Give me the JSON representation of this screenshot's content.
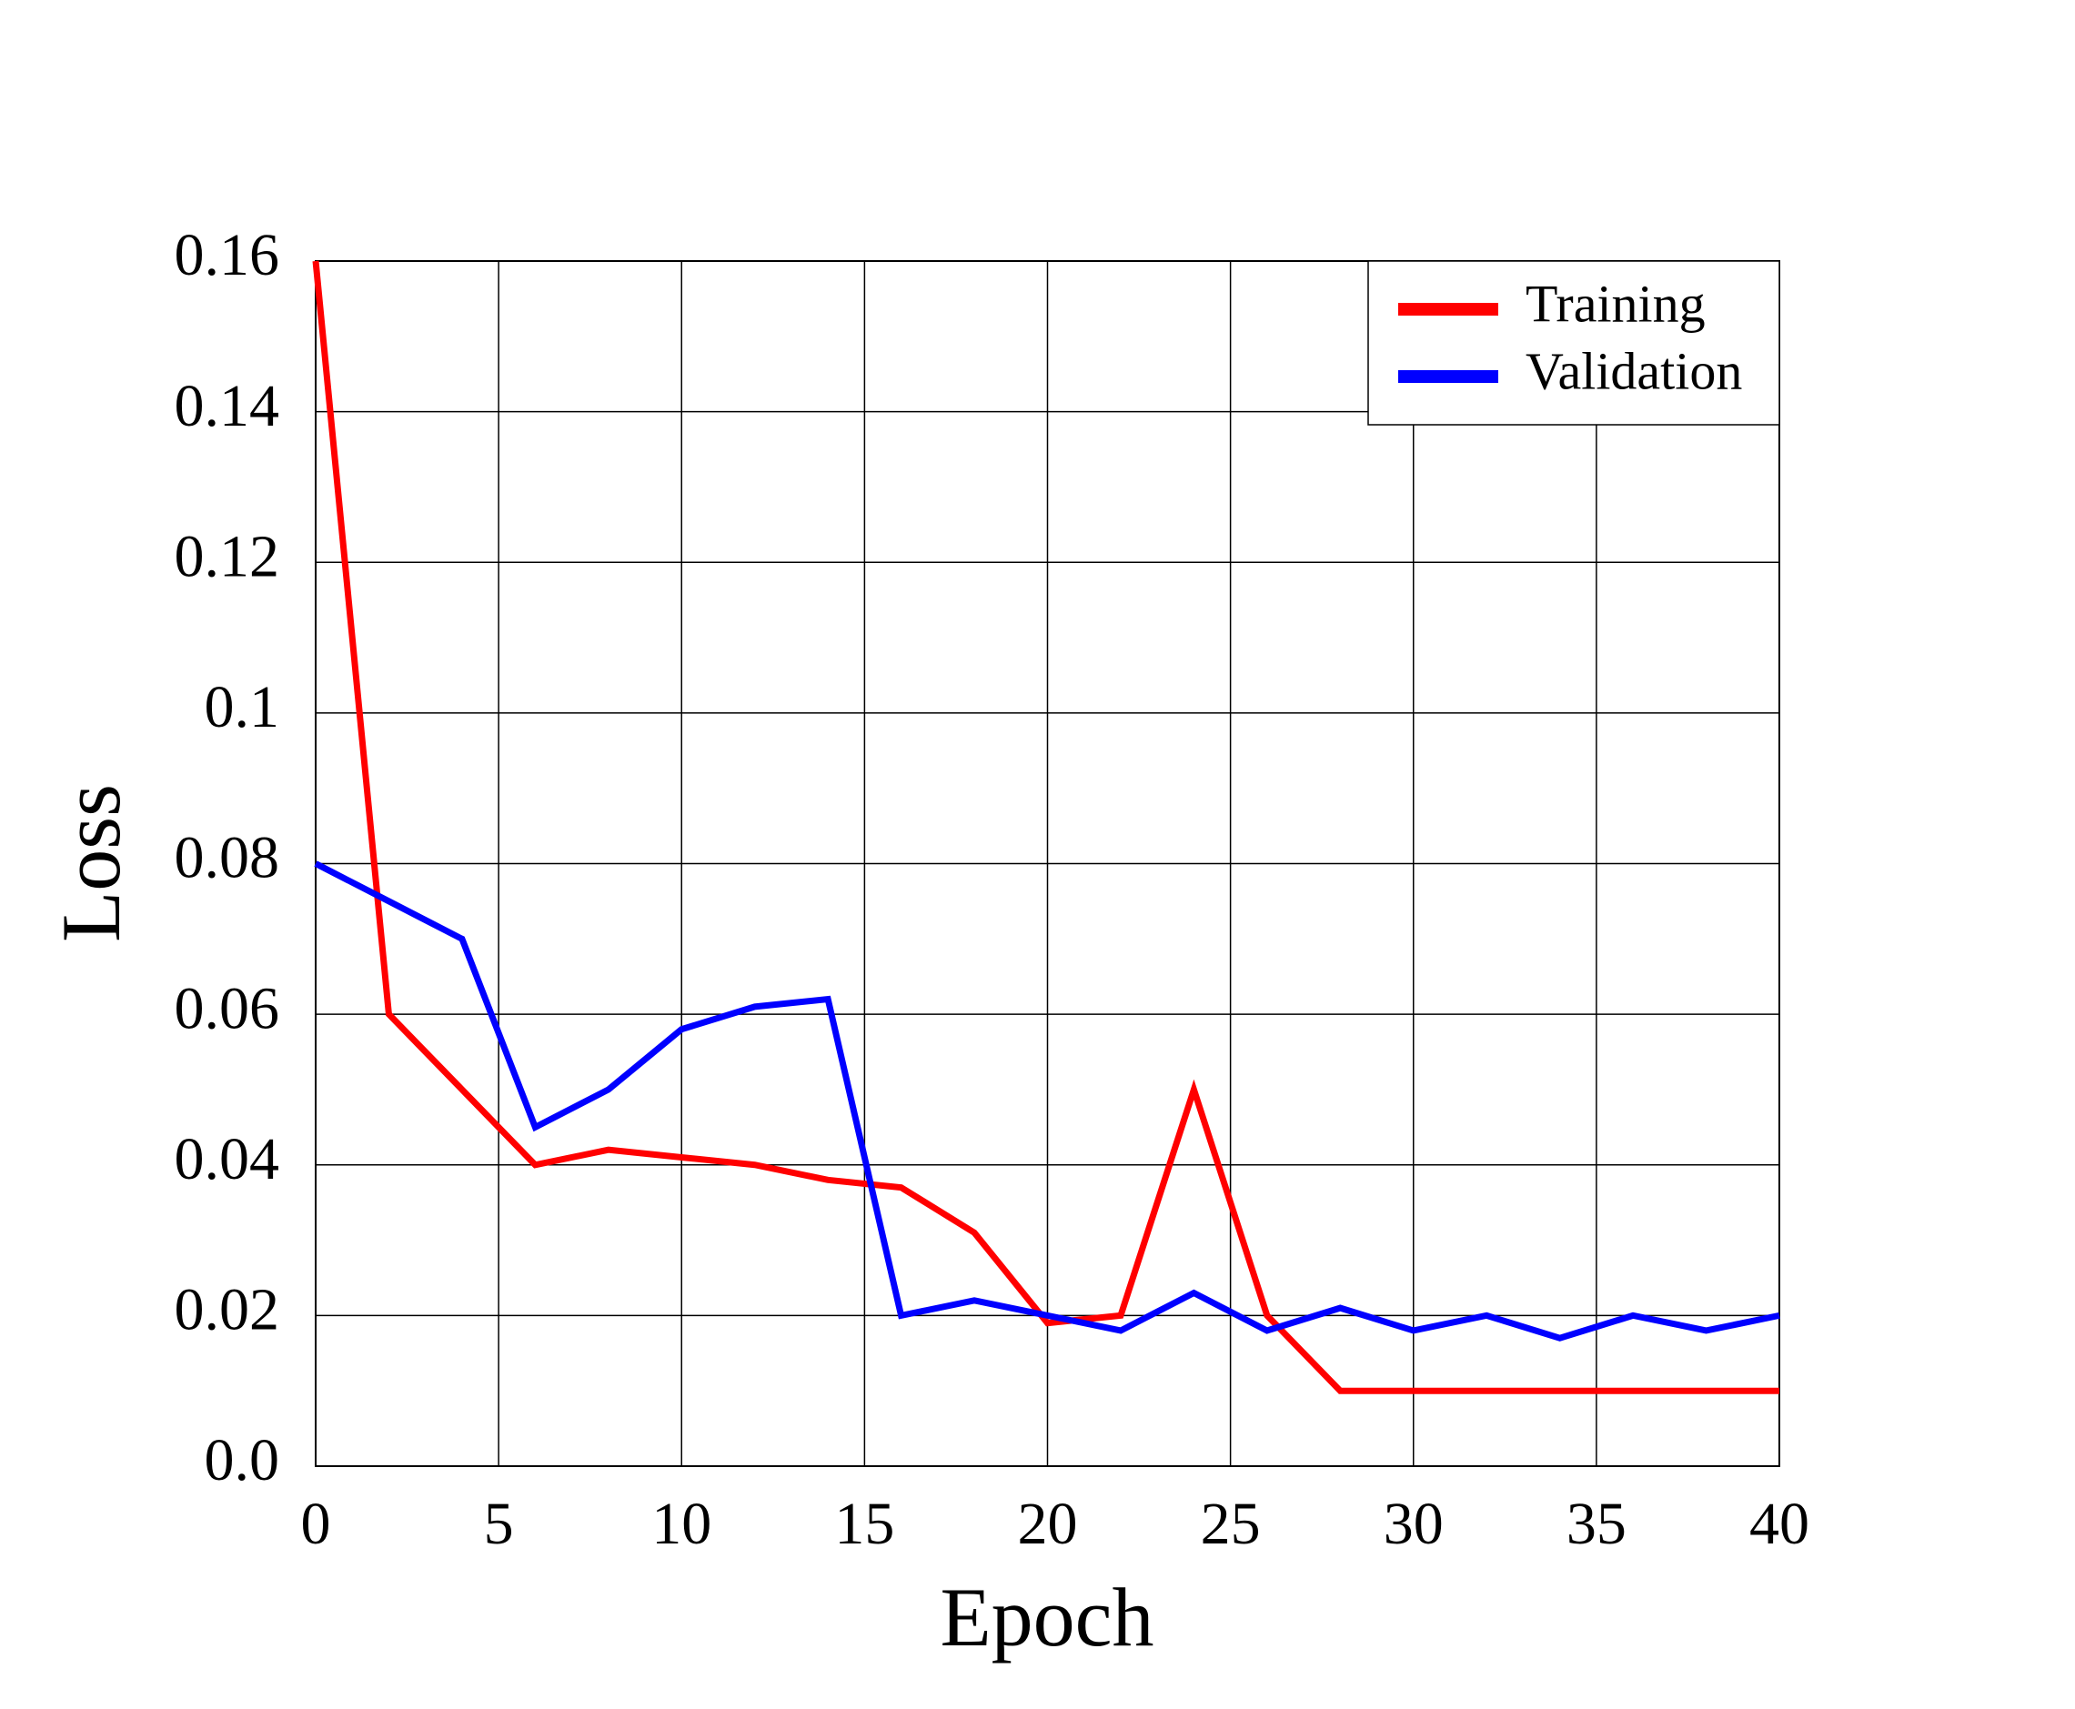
{
  "chart_data": {
    "type": "line",
    "xlabel": "Epoch",
    "ylabel": "Loss",
    "x": [
      0,
      2,
      4,
      6,
      8,
      10,
      12,
      14,
      16,
      18,
      20,
      22,
      24,
      26,
      28,
      30,
      32,
      34,
      36,
      38,
      40
    ],
    "series": [
      {
        "name": "Training",
        "color": "#ff0000",
        "values": [
          0.16,
          0.06,
          0.05,
          0.04,
          0.042,
          0.041,
          0.04,
          0.038,
          0.037,
          0.031,
          0.019,
          0.02,
          0.05,
          0.02,
          0.01,
          0.01,
          0.01,
          0.01,
          0.01,
          0.01,
          0.01
        ]
      },
      {
        "name": "Validation",
        "color": "#0000ff",
        "values": [
          0.08,
          0.075,
          0.07,
          0.045,
          0.05,
          0.058,
          0.061,
          0.062,
          0.02,
          0.022,
          0.02,
          0.018,
          0.023,
          0.018,
          0.021,
          0.018,
          0.02,
          0.017,
          0.02,
          0.018,
          0.02
        ]
      }
    ],
    "xlim": [
      0,
      40
    ],
    "xticks": [
      0,
      5,
      10,
      15,
      20,
      25,
      30,
      35,
      40
    ],
    "ylim": [
      0,
      0.16
    ],
    "yticks": [
      {
        "value": 0,
        "label": "0.0"
      },
      0.02,
      0.04,
      0.06,
      0.08,
      0.1,
      0.12,
      0.14,
      0.16
    ],
    "grid": true,
    "legend": "upper-right"
  }
}
